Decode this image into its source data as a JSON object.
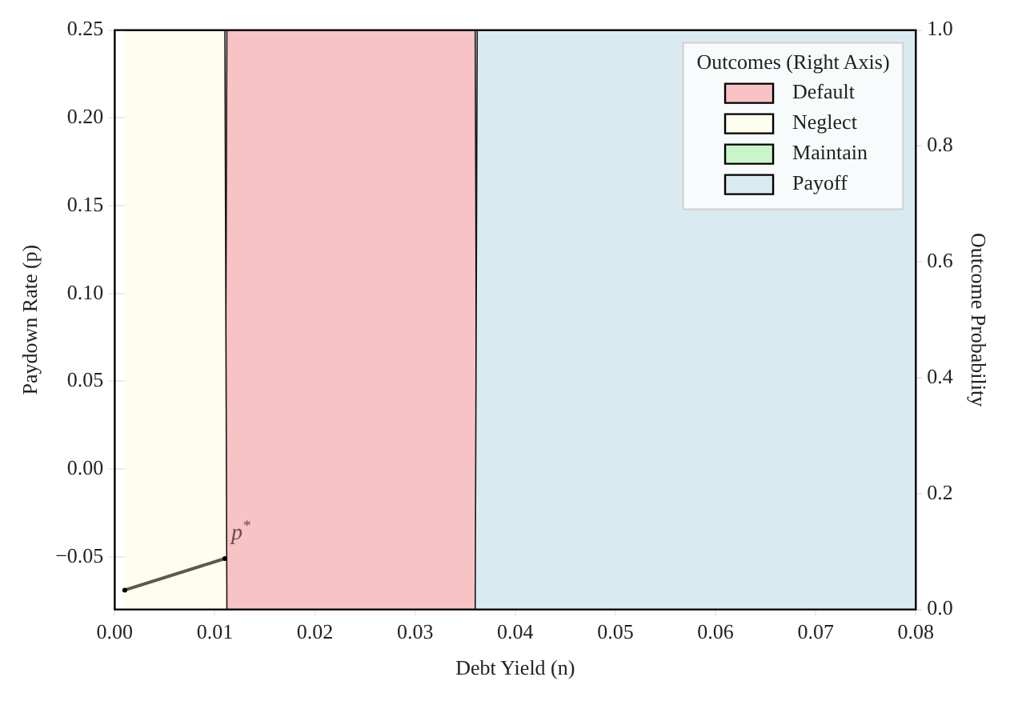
{
  "chart_data": {
    "type": "area",
    "xlabel": "Debt Yield (n)",
    "ylabel": "Paydown Rate (p)",
    "y2label": "Outcome Probability",
    "legend_title": "Outcomes (Right Axis)",
    "series": [
      {
        "name": "Default",
        "color": "#f7c3c4",
        "axis": "y2",
        "x": [
          0.011,
          0.0112,
          0.036,
          0.0362
        ],
        "values": [
          0,
          1,
          1,
          0
        ]
      },
      {
        "name": "Neglect",
        "color": "#fdfeee",
        "axis": "y2",
        "x": [
          0.001,
          0.011,
          0.0112
        ],
        "values": [
          1,
          1,
          0
        ]
      },
      {
        "name": "Maintain",
        "color": "#c8f6c8"
      },
      {
        "name": "Payoff",
        "color": "#d9ebf1",
        "axis": "y2",
        "x": [
          0.036,
          0.0362,
          0.08
        ],
        "values": [
          0,
          1,
          1
        ]
      },
      {
        "type": "line",
        "color": "#5a5a48",
        "marker": "circle",
        "x": [
          0.001,
          0.011
        ],
        "values": [
          -0.069,
          -0.051
        ]
      }
    ],
    "annotations": [
      {
        "text": "p$^{*}$",
        "x": 0.011,
        "y": -0.051
      }
    ],
    "xlim": [
      0,
      0.08
    ],
    "xticks": [
      {
        "value": 0,
        "label": "0.00"
      },
      {
        "value": 0.01,
        "label": "0.01"
      },
      {
        "value": 0.02,
        "label": "0.02"
      },
      {
        "value": 0.03,
        "label": "0.03"
      },
      {
        "value": 0.04,
        "label": "0.04"
      },
      {
        "value": 0.05,
        "label": "0.05"
      },
      {
        "value": 0.06,
        "label": "0.06"
      },
      {
        "value": 0.07,
        "label": "0.07"
      },
      {
        "value": 0.08,
        "label": "0.08"
      }
    ],
    "ylim": [
      -0.08,
      0.25
    ],
    "yticks": [
      {
        "value": -0.05,
        "label": "−0.05"
      },
      {
        "value": 0,
        "label": "0.00"
      },
      {
        "value": 0.05,
        "label": "0.05"
      },
      {
        "value": 0.1,
        "label": "0.10"
      },
      {
        "value": 0.15,
        "label": "0.15"
      },
      {
        "value": 0.2,
        "label": "0.20"
      },
      {
        "value": 0.25,
        "label": "0.25"
      }
    ],
    "y2lim": [
      0,
      1
    ],
    "y2ticks": [
      {
        "value": 0,
        "label": "0.0"
      },
      {
        "value": 0.2,
        "label": "0.2"
      },
      {
        "value": 0.4,
        "label": "0.4"
      },
      {
        "value": 0.6,
        "label": "0.6"
      },
      {
        "value": 0.8,
        "label": "0.8"
      },
      {
        "value": 1,
        "label": "1.0"
      }
    ],
    "grid": true,
    "legend": "top right"
  }
}
